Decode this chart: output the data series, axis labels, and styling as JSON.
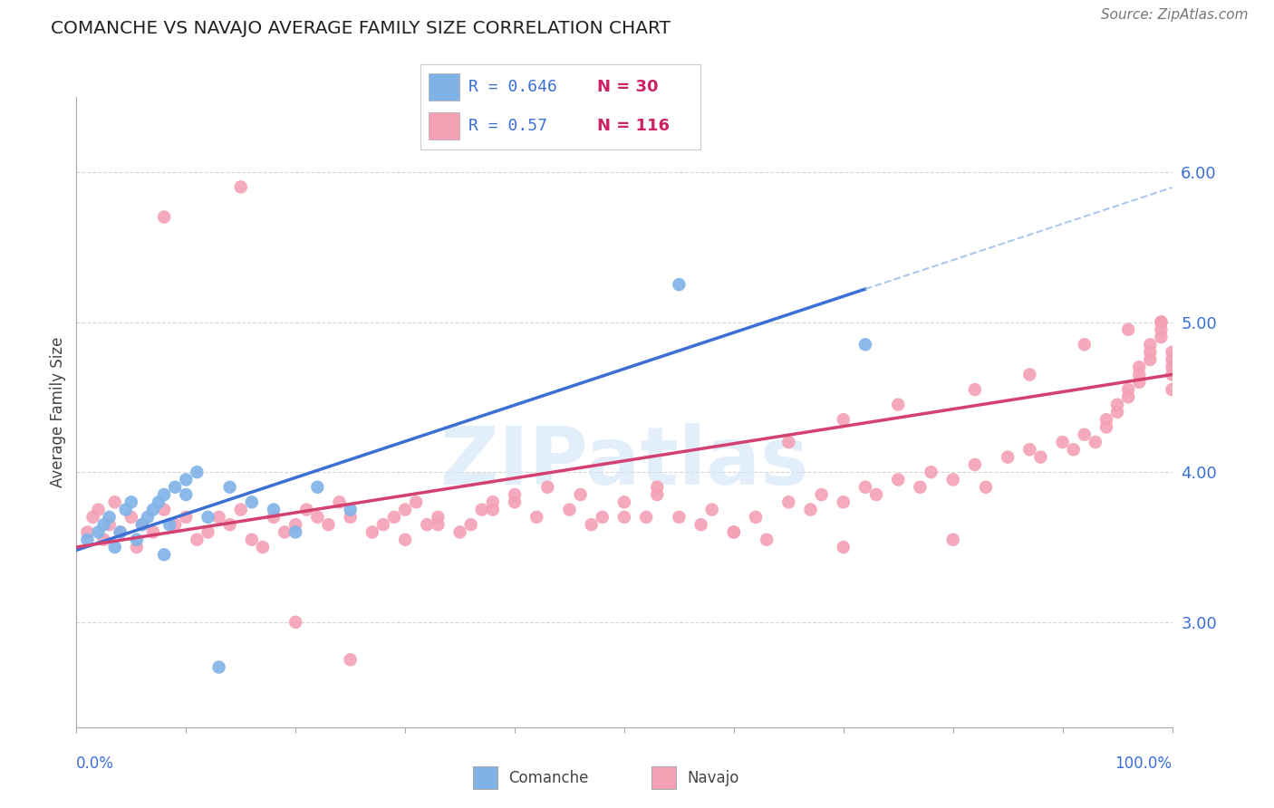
{
  "title": "COMANCHE VS NAVAJO AVERAGE FAMILY SIZE CORRELATION CHART",
  "ylabel": "Average Family Size",
  "source": "Source: ZipAtlas.com",
  "yticks": [
    3.0,
    4.0,
    5.0,
    6.0
  ],
  "ylim": [
    2.3,
    6.5
  ],
  "xlim": [
    0.0,
    1.0
  ],
  "comanche_R": 0.646,
  "comanche_N": 30,
  "navajo_R": 0.57,
  "navajo_N": 116,
  "comanche_color": "#7fb3e8",
  "navajo_color": "#f4a0b5",
  "comanche_line_color": "#3b6fd4",
  "navajo_line_color": "#d44070",
  "dashed_line_color": "#aac8ee",
  "background_color": "#ffffff",
  "grid_color": "#cccccc",
  "watermark_color": "#d0e4f5",
  "comanche_x": [
    0.01,
    0.02,
    0.025,
    0.03,
    0.035,
    0.04,
    0.045,
    0.05,
    0.055,
    0.06,
    0.065,
    0.07,
    0.075,
    0.08,
    0.085,
    0.09,
    0.1,
    0.11,
    0.12,
    0.14,
    0.16,
    0.18,
    0.2,
    0.22,
    0.25,
    0.1,
    0.08,
    0.55,
    0.72,
    0.13
  ],
  "comanche_y": [
    3.55,
    3.6,
    3.65,
    3.7,
    3.5,
    3.6,
    3.75,
    3.8,
    3.55,
    3.65,
    3.7,
    3.75,
    3.8,
    3.85,
    3.65,
    3.9,
    3.85,
    4.0,
    3.7,
    3.9,
    3.8,
    3.75,
    3.6,
    3.9,
    3.75,
    3.95,
    3.45,
    5.25,
    4.85,
    2.7
  ],
  "navajo_x": [
    0.01,
    0.015,
    0.02,
    0.025,
    0.03,
    0.035,
    0.04,
    0.05,
    0.055,
    0.06,
    0.07,
    0.08,
    0.09,
    0.1,
    0.11,
    0.12,
    0.13,
    0.14,
    0.15,
    0.16,
    0.17,
    0.18,
    0.19,
    0.2,
    0.21,
    0.22,
    0.23,
    0.24,
    0.25,
    0.27,
    0.28,
    0.29,
    0.3,
    0.31,
    0.32,
    0.33,
    0.35,
    0.36,
    0.37,
    0.38,
    0.4,
    0.42,
    0.43,
    0.45,
    0.46,
    0.47,
    0.48,
    0.5,
    0.52,
    0.53,
    0.55,
    0.57,
    0.58,
    0.6,
    0.62,
    0.63,
    0.65,
    0.67,
    0.68,
    0.7,
    0.72,
    0.73,
    0.75,
    0.77,
    0.78,
    0.8,
    0.82,
    0.83,
    0.85,
    0.87,
    0.88,
    0.9,
    0.91,
    0.92,
    0.93,
    0.94,
    0.94,
    0.95,
    0.95,
    0.96,
    0.96,
    0.97,
    0.97,
    0.97,
    0.98,
    0.98,
    0.98,
    0.99,
    0.99,
    0.99,
    0.99,
    1.0,
    1.0,
    1.0,
    1.0,
    1.0,
    0.38,
    0.3,
    0.53,
    0.65,
    0.7,
    0.75,
    0.82,
    0.87,
    0.92,
    0.96,
    0.08,
    0.15,
    0.2,
    0.25,
    0.33,
    0.4,
    0.5,
    0.6,
    0.7,
    0.8
  ],
  "navajo_y": [
    3.6,
    3.7,
    3.75,
    3.55,
    3.65,
    3.8,
    3.6,
    3.7,
    3.5,
    3.65,
    3.6,
    3.75,
    3.65,
    3.7,
    3.55,
    3.6,
    3.7,
    3.65,
    3.75,
    3.55,
    3.5,
    3.7,
    3.6,
    3.65,
    3.75,
    3.7,
    3.65,
    3.8,
    3.7,
    3.6,
    3.65,
    3.7,
    3.75,
    3.8,
    3.65,
    3.7,
    3.6,
    3.65,
    3.75,
    3.8,
    3.85,
    3.7,
    3.9,
    3.75,
    3.85,
    3.65,
    3.7,
    3.8,
    3.7,
    3.9,
    3.7,
    3.65,
    3.75,
    3.6,
    3.7,
    3.55,
    3.8,
    3.75,
    3.85,
    3.8,
    3.9,
    3.85,
    3.95,
    3.9,
    4.0,
    3.95,
    4.05,
    3.9,
    4.1,
    4.15,
    4.1,
    4.2,
    4.15,
    4.25,
    4.2,
    4.35,
    4.3,
    4.4,
    4.45,
    4.5,
    4.55,
    4.6,
    4.65,
    4.7,
    4.75,
    4.8,
    4.85,
    4.9,
    4.95,
    5.0,
    5.0,
    4.55,
    4.65,
    4.7,
    4.75,
    4.8,
    3.75,
    3.55,
    3.85,
    4.2,
    4.35,
    4.45,
    4.55,
    4.65,
    4.85,
    4.95,
    5.7,
    5.9,
    3.0,
    2.75,
    3.65,
    3.8,
    3.7,
    3.6,
    3.5,
    3.55
  ]
}
